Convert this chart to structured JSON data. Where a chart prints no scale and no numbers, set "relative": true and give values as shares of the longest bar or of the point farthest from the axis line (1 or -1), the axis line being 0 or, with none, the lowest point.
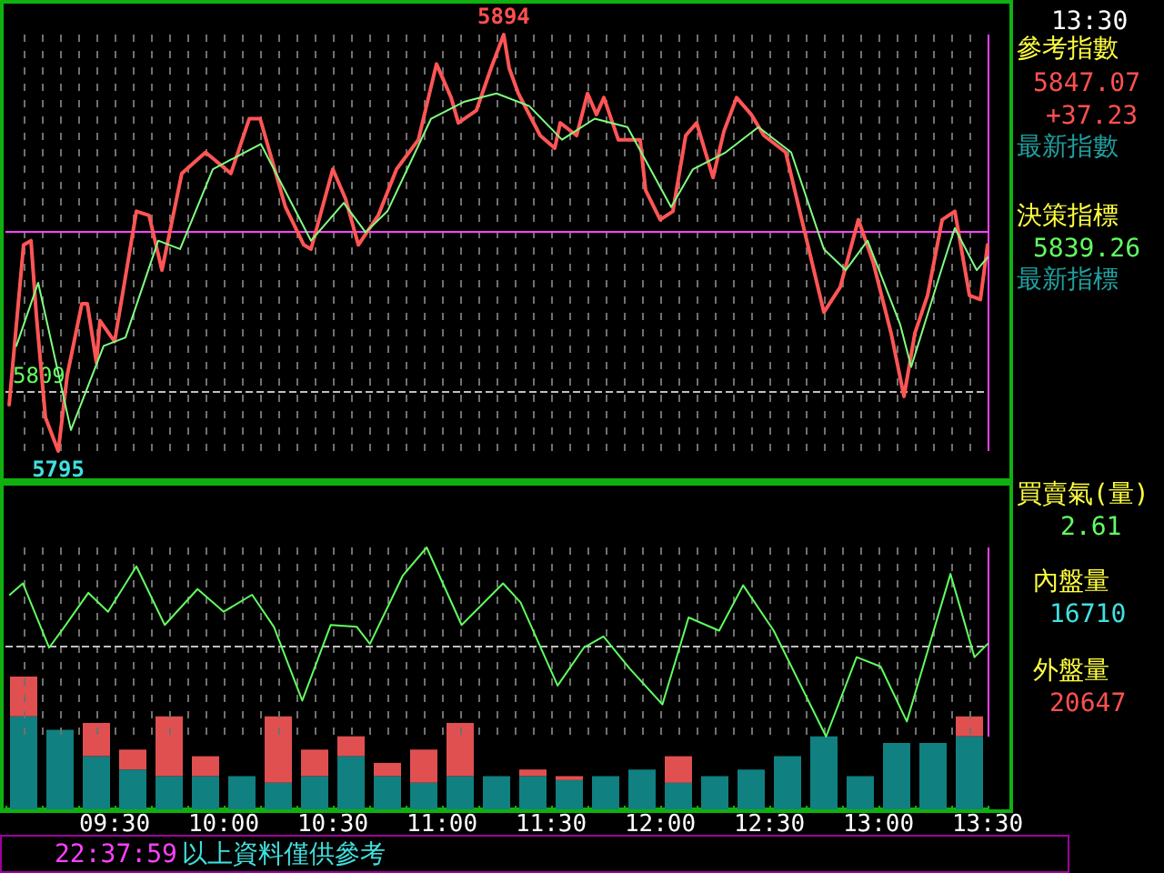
{
  "chart_data": [
    {
      "type": "line",
      "tick_labels": false,
      "grid": "x",
      "marker": "none",
      "line_style": "solid",
      "xlim": [
        9,
        13.5
      ],
      "xticks": [
        {
          "value": 9.0833,
          "label": null
        },
        {
          "value": 9.1667,
          "label": null
        },
        {
          "value": 9.25,
          "label": null
        },
        {
          "value": 9.3333,
          "label": null
        },
        {
          "value": 9.4167,
          "label": null
        },
        {
          "value": 9.5,
          "label": null
        },
        {
          "value": 9.5833,
          "label": null
        },
        {
          "value": 9.6667,
          "label": null
        },
        {
          "value": 9.75,
          "label": null
        },
        {
          "value": 9.8333,
          "label": null
        },
        {
          "value": 9.9167,
          "label": null
        },
        {
          "value": 10,
          "label": null
        },
        {
          "value": 10.0833,
          "label": null
        },
        {
          "value": 10.1667,
          "label": null
        },
        {
          "value": 10.25,
          "label": null
        },
        {
          "value": 10.3333,
          "label": null
        },
        {
          "value": 10.4167,
          "label": null
        },
        {
          "value": 10.5,
          "label": null
        },
        {
          "value": 10.5833,
          "label": null
        },
        {
          "value": 10.6667,
          "label": null
        },
        {
          "value": 10.75,
          "label": null
        },
        {
          "value": 10.8333,
          "label": null
        },
        {
          "value": 10.9167,
          "label": null
        },
        {
          "value": 11,
          "label": null
        },
        {
          "value": 11.0833,
          "label": null
        },
        {
          "value": 11.1667,
          "label": null
        },
        {
          "value": 11.25,
          "label": null
        },
        {
          "value": 11.3333,
          "label": null
        },
        {
          "value": 11.4167,
          "label": null
        },
        {
          "value": 11.5,
          "label": null
        },
        {
          "value": 11.5833,
          "label": null
        },
        {
          "value": 11.6667,
          "label": null
        },
        {
          "value": 11.75,
          "label": null
        },
        {
          "value": 11.8333,
          "label": null
        },
        {
          "value": 11.9167,
          "label": null
        },
        {
          "value": 12,
          "label": null
        },
        {
          "value": 12.0833,
          "label": null
        },
        {
          "value": 12.1667,
          "label": null
        },
        {
          "value": 12.25,
          "label": null
        },
        {
          "value": 12.3333,
          "label": null
        },
        {
          "value": 12.4167,
          "label": null
        },
        {
          "value": 12.5,
          "label": null
        },
        {
          "value": 12.5833,
          "label": null
        },
        {
          "value": 12.6667,
          "label": null
        },
        {
          "value": 12.75,
          "label": null
        },
        {
          "value": 12.8333,
          "label": null
        },
        {
          "value": 12.9167,
          "label": null
        },
        {
          "value": 13,
          "label": null
        },
        {
          "value": 13.0833,
          "label": null
        },
        {
          "value": 13.1667,
          "label": null
        },
        {
          "value": 13.25,
          "label": null
        },
        {
          "value": 13.3333,
          "label": null
        },
        {
          "value": 13.4167,
          "label": null
        },
        {
          "value": 13.5,
          "label": null
        }
      ],
      "series": [
        {
          "color": "#ff5555",
          "x": [
            9.017,
            9.083,
            9.117,
            9.142,
            9.183,
            9.242,
            9.283,
            9.35,
            9.375,
            9.417,
            9.433,
            9.5,
            9.6,
            9.658,
            9.717,
            9.808,
            9.917,
            10.033,
            10.117,
            10.167,
            10.283,
            10.367,
            10.4,
            10.5,
            10.558,
            10.617,
            10.708,
            10.792,
            10.892,
            10.975,
            11.042,
            11.075,
            11.158,
            11.225,
            11.283,
            11.308,
            11.35,
            11.45,
            11.517,
            11.542,
            11.617,
            11.667,
            11.708,
            11.742,
            11.808,
            11.908,
            11.933,
            12,
            12.058,
            12.117,
            12.167,
            12.242,
            12.292,
            12.35,
            12.417,
            12.475,
            12.575,
            12.667,
            12.75,
            12.825,
            12.908,
            12.975,
            13.058,
            13.117,
            13.167,
            13.225,
            13.292,
            13.35,
            13.417,
            13.467,
            13.5
          ],
          "value_labels": [
            null,
            null,
            null,
            null,
            null,
            "5795",
            null,
            null,
            null,
            null,
            null,
            null,
            null,
            null,
            null,
            null,
            null,
            null,
            null,
            null,
            null,
            null,
            null,
            null,
            null,
            null,
            null,
            null,
            null,
            null,
            null,
            null,
            null,
            null,
            "5894",
            null,
            null,
            null,
            null,
            null,
            null,
            null,
            null,
            null,
            null,
            null,
            null,
            null,
            null,
            null,
            null,
            null,
            null,
            null,
            null,
            null,
            null,
            null,
            null,
            null,
            null,
            null,
            null,
            null,
            null,
            null,
            null,
            null,
            null,
            null,
            null
          ],
          "values": [
            5806,
            5844,
            5845,
            5827,
            5803,
            5795,
            5813,
            5830,
            5830,
            5816,
            5826,
            5821,
            5852,
            5851,
            5838,
            5861,
            5866,
            5861,
            5874,
            5874,
            5853,
            5844,
            5843,
            5862,
            5855,
            5844,
            5851,
            5862,
            5869,
            5887,
            5879,
            5873,
            5876,
            5886,
            5894,
            5886,
            5880,
            5870,
            5867,
            5873,
            5870,
            5880,
            5875,
            5879,
            5869,
            5869,
            5857,
            5850,
            5852,
            5870,
            5873,
            5860,
            5871,
            5879,
            5875,
            5870,
            5866,
            5846,
            5828,
            5834,
            5850,
            5840,
            5823,
            5808,
            5823,
            5832,
            5850,
            5852,
            5832,
            5831,
            5844
          ]
        },
        {
          "color": "#80ff80",
          "x": [
            9.05,
            9.15,
            9.3,
            9.45,
            9.55,
            9.7,
            9.8,
            9.95,
            10.17,
            10.35,
            10.4,
            10.55,
            10.65,
            10.75,
            10.95,
            11.1,
            11.25,
            11.4,
            11.55,
            11.7,
            11.85,
            12.05,
            12.15,
            12.3,
            12.45,
            12.6,
            12.75,
            12.85,
            12.95,
            13.1,
            13.15,
            13.3,
            13.35,
            13.45,
            13.5
          ],
          "values": [
            5820,
            5835,
            5800,
            5820,
            5822,
            5845,
            5843,
            5862,
            5868,
            5850,
            5845,
            5854,
            5847,
            5852,
            5874,
            5878,
            5880,
            5877,
            5869,
            5874,
            5872,
            5853,
            5862,
            5866,
            5872,
            5866,
            5843,
            5838,
            5845,
            5825,
            5815,
            5840,
            5848,
            5838,
            5841
          ]
        }
      ],
      "ref_lines": [
        {
          "axis": "y",
          "value": 5847,
          "label": null,
          "color": "#ff40ff",
          "line_style": "solid"
        },
        {
          "axis": "y",
          "value": 5809,
          "label": "5809",
          "color": "#c0c0c0",
          "line_style": "dashed"
        },
        {
          "axis": "x",
          "value": 13.5,
          "label": null,
          "color": "#ff40ff",
          "line_style": "solid"
        }
      ],
      "annotations": [
        "13:30",
        "參考指數",
        "5847.07",
        "+37.23",
        "最新指數",
        "決策指標",
        "5839.26",
        "最新指標",
        "22:37:59",
        "以上資料僅供參考"
      ]
    },
    {
      "type": "line",
      "relative": true,
      "tick_labels": "x",
      "grid": "x",
      "marker": "none",
      "line_style": "solid",
      "xlim": [
        9,
        13.5
      ],
      "xticks": [
        {
          "value": 9.0833,
          "label": null
        },
        {
          "value": 9.1667,
          "label": null
        },
        {
          "value": 9.25,
          "label": null
        },
        {
          "value": 9.3333,
          "label": null
        },
        {
          "value": 9.4167,
          "label": null
        },
        {
          "value": 9.5,
          "label": "09:30"
        },
        {
          "value": 9.5833,
          "label": null
        },
        {
          "value": 9.6667,
          "label": null
        },
        {
          "value": 9.75,
          "label": null
        },
        {
          "value": 9.8333,
          "label": null
        },
        {
          "value": 9.9167,
          "label": null
        },
        {
          "value": 10,
          "label": "10:00"
        },
        {
          "value": 10.0833,
          "label": null
        },
        {
          "value": 10.1667,
          "label": null
        },
        {
          "value": 10.25,
          "label": null
        },
        {
          "value": 10.3333,
          "label": null
        },
        {
          "value": 10.4167,
          "label": null
        },
        {
          "value": 10.5,
          "label": "10:30"
        },
        {
          "value": 10.5833,
          "label": null
        },
        {
          "value": 10.6667,
          "label": null
        },
        {
          "value": 10.75,
          "label": null
        },
        {
          "value": 10.8333,
          "label": null
        },
        {
          "value": 10.9167,
          "label": null
        },
        {
          "value": 11,
          "label": "11:00"
        },
        {
          "value": 11.0833,
          "label": null
        },
        {
          "value": 11.1667,
          "label": null
        },
        {
          "value": 11.25,
          "label": null
        },
        {
          "value": 11.3333,
          "label": null
        },
        {
          "value": 11.4167,
          "label": null
        },
        {
          "value": 11.5,
          "label": "11:30"
        },
        {
          "value": 11.5833,
          "label": null
        },
        {
          "value": 11.6667,
          "label": null
        },
        {
          "value": 11.75,
          "label": null
        },
        {
          "value": 11.8333,
          "label": null
        },
        {
          "value": 11.9167,
          "label": null
        },
        {
          "value": 12,
          "label": "12:00"
        },
        {
          "value": 12.0833,
          "label": null
        },
        {
          "value": 12.1667,
          "label": null
        },
        {
          "value": 12.25,
          "label": null
        },
        {
          "value": 12.3333,
          "label": null
        },
        {
          "value": 12.4167,
          "label": null
        },
        {
          "value": 12.5,
          "label": "12:30"
        },
        {
          "value": 12.5833,
          "label": null
        },
        {
          "value": 12.6667,
          "label": null
        },
        {
          "value": 12.75,
          "label": null
        },
        {
          "value": 12.8333,
          "label": null
        },
        {
          "value": 12.9167,
          "label": null
        },
        {
          "value": 13,
          "label": "13:00"
        },
        {
          "value": 13.0833,
          "label": null
        },
        {
          "value": 13.1667,
          "label": null
        },
        {
          "value": 13.25,
          "label": null
        },
        {
          "value": 13.3333,
          "label": null
        },
        {
          "value": 13.4167,
          "label": null
        },
        {
          "value": 13.5,
          "label": "13:30"
        }
      ],
      "series": [
        {
          "color": "#60ff60",
          "x": [
            9.02,
            9.08,
            9.2,
            9.27,
            9.38,
            9.47,
            9.6,
            9.73,
            9.88,
            10.0,
            10.13,
            10.23,
            10.36,
            10.49,
            10.61,
            10.67,
            10.82,
            10.93,
            11.09,
            11.28,
            11.36,
            11.53,
            11.65,
            11.74,
            11.86,
            12.01,
            12.13,
            12.27,
            12.38,
            12.52,
            12.76,
            12.9,
            13.01,
            13.13,
            13.33,
            13.44,
            13.5
          ],
          "values": [
            0.75,
            0.81,
            0.47,
            0.58,
            0.76,
            0.66,
            0.9,
            0.59,
            0.78,
            0.66,
            0.75,
            0.58,
            0.19,
            0.59,
            0.58,
            0.49,
            0.85,
            1,
            0.59,
            0.81,
            0.71,
            0.27,
            0.47,
            0.53,
            0.36,
            0.17,
            0.63,
            0.56,
            0.8,
            0.56,
            0,
            0.42,
            0.37,
            0.08,
            0.86,
            0.42,
            0.49
          ]
        }
      ],
      "ref_lines": [
        {
          "axis": "y",
          "value": 0.48,
          "label": null,
          "color": "#c0c0c0",
          "line_style": "dashed"
        },
        {
          "axis": "x",
          "value": 13.5,
          "label": null,
          "color": "#ff40ff",
          "line_style": "solid"
        }
      ],
      "annotations": [
        "買賣氣(量)",
        "2.61",
        "內盤量",
        "16710",
        "外盤量",
        "20647"
      ]
    },
    {
      "type": "bar",
      "relative": true,
      "stacked": true,
      "tick_labels": false,
      "categories": [
        null,
        null,
        null,
        null,
        null,
        null,
        null,
        null,
        null,
        null,
        null,
        null,
        null,
        null,
        null,
        null,
        null,
        null,
        null,
        null,
        null,
        null,
        null,
        null,
        null,
        null,
        null
      ],
      "series": [
        {
          "color": "#108080",
          "values": [
            0.7,
            0.6,
            0.4,
            0.3,
            0.25,
            0.25,
            0.25,
            0.2,
            0.25,
            0.4,
            0.25,
            0.2,
            0.25,
            0.25,
            0.25,
            0.22,
            0.25,
            0.3,
            0.2,
            0.25,
            0.3,
            0.4,
            0.55,
            0.25,
            0.5,
            0.5,
            0.55
          ]
        },
        {
          "color": "#e05050",
          "values": [
            0.3,
            0,
            0.25,
            0.15,
            0.45,
            0.15,
            0,
            0.5,
            0.2,
            0.15,
            0.1,
            0.25,
            0.4,
            0,
            0.05,
            0.03,
            0,
            0,
            0.2,
            0,
            0,
            0,
            0,
            0,
            0,
            0,
            0.15
          ]
        }
      ]
    }
  ]
}
